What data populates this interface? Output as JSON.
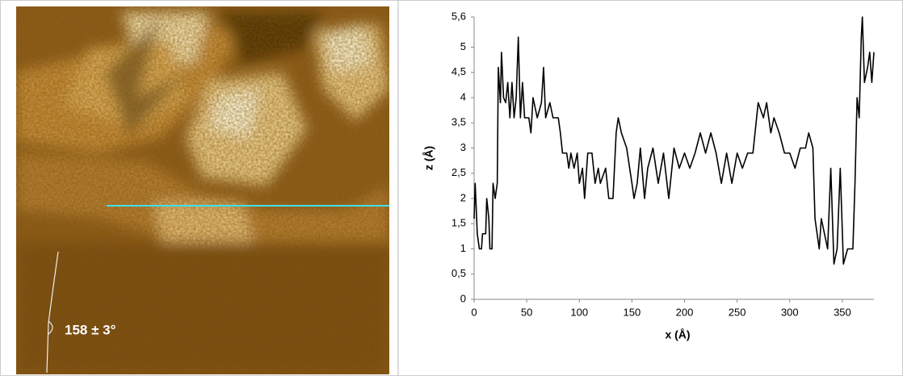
{
  "image": {
    "annotation": "158 ± 3°"
  },
  "chart_data": {
    "type": "line",
    "xlabel": "x (Å)",
    "ylabel": "z (Å)",
    "color": "#000000",
    "x": [
      0,
      1,
      3,
      5,
      7,
      8,
      11,
      12,
      14,
      15,
      17,
      18,
      20,
      22,
      23,
      25,
      26,
      28,
      30,
      32,
      34,
      36,
      38,
      40,
      42,
      44,
      46,
      48,
      52,
      54,
      56,
      60,
      64,
      66,
      68,
      72,
      75,
      80,
      82,
      84,
      88,
      90,
      92,
      95,
      98,
      100,
      103,
      105,
      108,
      112,
      115,
      118,
      120,
      125,
      128,
      132,
      135,
      137,
      140,
      145,
      150,
      152,
      155,
      158,
      162,
      165,
      170,
      175,
      180,
      185,
      190,
      195,
      200,
      205,
      210,
      215,
      220,
      225,
      230,
      235,
      240,
      245,
      250,
      255,
      260,
      265,
      270,
      275,
      278,
      282,
      285,
      290,
      295,
      300,
      305,
      310,
      315,
      318,
      322,
      324,
      328,
      330,
      333,
      336,
      339,
      342,
      345,
      348,
      351,
      355,
      360,
      362,
      364,
      366,
      368,
      369,
      371,
      374,
      376,
      378,
      380
    ],
    "values": [
      1.6,
      2.3,
      1.3,
      1.0,
      1.0,
      1.3,
      1.3,
      2.0,
      1.6,
      1.0,
      1.0,
      2.3,
      2.0,
      2.3,
      4.6,
      3.9,
      4.9,
      4.0,
      3.9,
      4.3,
      3.6,
      4.3,
      3.6,
      4.0,
      5.2,
      3.6,
      4.3,
      3.6,
      3.6,
      3.3,
      4.0,
      3.6,
      3.9,
      4.6,
      3.6,
      3.9,
      3.6,
      3.6,
      3.3,
      2.9,
      2.9,
      2.6,
      2.9,
      2.6,
      2.9,
      2.3,
      2.6,
      2.0,
      2.9,
      2.9,
      2.3,
      2.6,
      2.3,
      2.6,
      2.0,
      2.0,
      3.3,
      3.6,
      3.3,
      3.0,
      2.3,
      2.0,
      2.3,
      3.0,
      2.0,
      2.6,
      3.0,
      2.3,
      2.9,
      2.0,
      3.0,
      2.6,
      2.9,
      2.6,
      2.9,
      3.3,
      2.9,
      3.3,
      2.9,
      2.3,
      2.9,
      2.3,
      2.9,
      2.6,
      2.9,
      2.9,
      3.9,
      3.6,
      3.9,
      3.3,
      3.6,
      3.3,
      2.9,
      2.9,
      2.6,
      3.0,
      3.0,
      3.3,
      3.0,
      1.6,
      1.0,
      1.6,
      1.3,
      1.0,
      2.6,
      0.7,
      1.0,
      2.6,
      0.7,
      1.0,
      1.0,
      2.3,
      4.0,
      3.6,
      5.2,
      5.6,
      4.3,
      4.6,
      4.9,
      4.3,
      4.9
    ],
    "xlim": [
      0,
      380
    ],
    "xticks": [
      0,
      50,
      100,
      150,
      200,
      250,
      300,
      350
    ],
    "ylim": [
      0,
      5.6
    ],
    "yticks": [
      0,
      {
        "value": 0.5,
        "label": "0,5"
      },
      1,
      {
        "value": 1.5,
        "label": "1,5"
      },
      2,
      {
        "value": 2.5,
        "label": "2,5"
      },
      3,
      {
        "value": 3.5,
        "label": "3,5"
      },
      4,
      {
        "value": 4.5,
        "label": "4,5"
      },
      5,
      {
        "value": 5.6,
        "label": "5,6"
      }
    ]
  }
}
